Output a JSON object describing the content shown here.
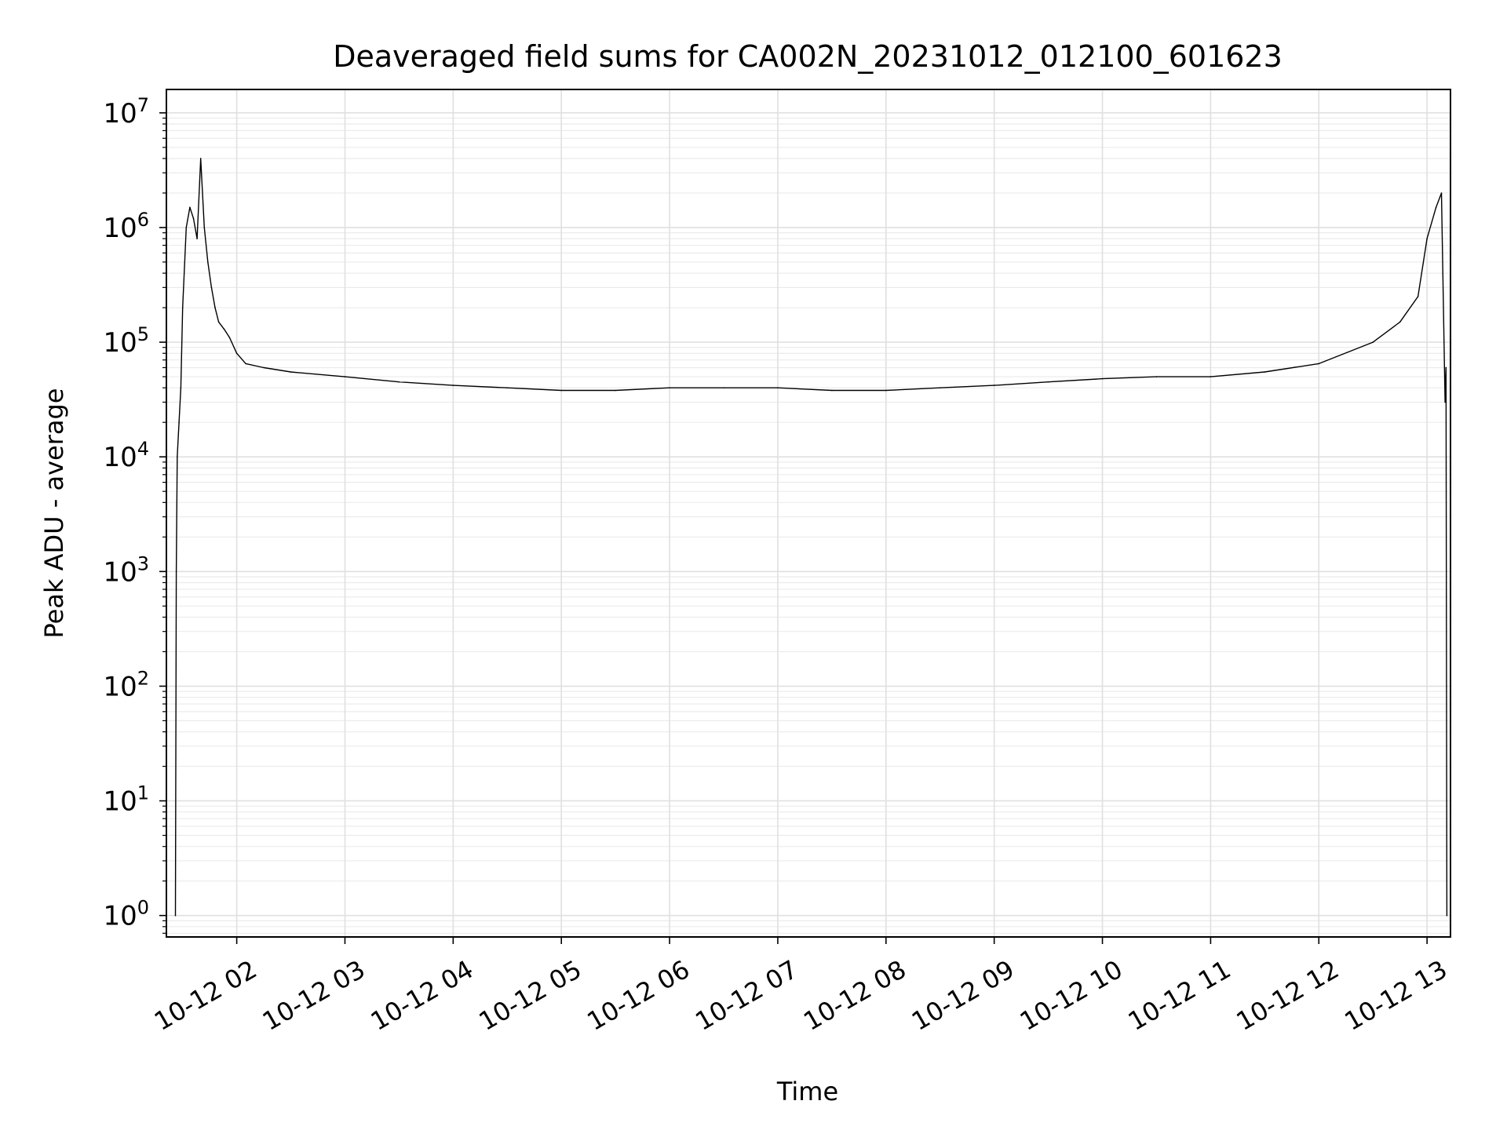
{
  "chart_data": {
    "type": "line",
    "title": "Deaveraged field sums for CA002N_20231012_012100_601623",
    "xlabel": "Time",
    "ylabel": "Peak ADU - average",
    "yscale": "log",
    "ylim": [
      0.65,
      16000000
    ],
    "xlim": [
      "10-12 01:21",
      "10-12 13:13"
    ],
    "grid": true,
    "minor_grid": true,
    "line_color": "#000000",
    "x_tick_labels": [
      "10-12 02",
      "10-12 03",
      "10-12 04",
      "10-12 05",
      "10-12 06",
      "10-12 07",
      "10-12 08",
      "10-12 09",
      "10-12 10",
      "10-12 11",
      "10-12 12",
      "10-12 13"
    ],
    "y_tick_labels": [
      {
        "value": 1,
        "base": "10",
        "exp": "0"
      },
      {
        "value": 10,
        "base": "10",
        "exp": "1"
      },
      {
        "value": 100,
        "base": "10",
        "exp": "2"
      },
      {
        "value": 1000,
        "base": "10",
        "exp": "3"
      },
      {
        "value": 10000,
        "base": "10",
        "exp": "4"
      },
      {
        "value": 100000,
        "base": "10",
        "exp": "5"
      },
      {
        "value": 1000000,
        "base": "10",
        "exp": "6"
      },
      {
        "value": 10000000,
        "base": "10",
        "exp": "7"
      }
    ],
    "series": [
      {
        "x": [
          "10-12 01:26",
          "10-12 01:26:30",
          "10-12 01:27",
          "10-12 01:28",
          "10-12 01:29",
          "10-12 01:30",
          "10-12 01:32",
          "10-12 01:34",
          "10-12 01:36",
          "10-12 01:38",
          "10-12 01:40",
          "10-12 01:42",
          "10-12 01:44",
          "10-12 01:46",
          "10-12 01:48",
          "10-12 01:50",
          "10-12 01:53",
          "10-12 01:56",
          "10-12 02:00",
          "10-12 02:05",
          "10-12 02:15",
          "10-12 02:30",
          "10-12 03:00",
          "10-12 03:30",
          "10-12 04:00",
          "10-12 04:30",
          "10-12 05:00",
          "10-12 05:30",
          "10-12 06:00",
          "10-12 06:30",
          "10-12 07:00",
          "10-12 07:30",
          "10-12 08:00",
          "10-12 08:30",
          "10-12 09:00",
          "10-12 09:30",
          "10-12 10:00",
          "10-12 10:30",
          "10-12 11:00",
          "10-12 11:30",
          "10-12 12:00",
          "10-12 12:30",
          "10-12 12:45",
          "10-12 12:55",
          "10-12 13:00",
          "10-12 13:05",
          "10-12 13:08",
          "10-12 13:10",
          "10-12 13:10:30",
          "10-12 13:11"
        ],
        "y": [
          1,
          1000,
          10000,
          20000,
          40000,
          200000,
          1000000,
          1500000,
          1200000,
          800000,
          4000000,
          1000000,
          500000,
          300000,
          200000,
          150000,
          130000,
          110000,
          80000,
          65000,
          60000,
          55000,
          50000,
          45000,
          42000,
          40000,
          38000,
          38000,
          40000,
          40000,
          40000,
          38000,
          38000,
          40000,
          42000,
          45000,
          48000,
          50000,
          50000,
          55000,
          65000,
          100000,
          150000,
          250000,
          800000,
          1500000,
          2000000,
          30000,
          60000,
          1
        ]
      }
    ]
  }
}
